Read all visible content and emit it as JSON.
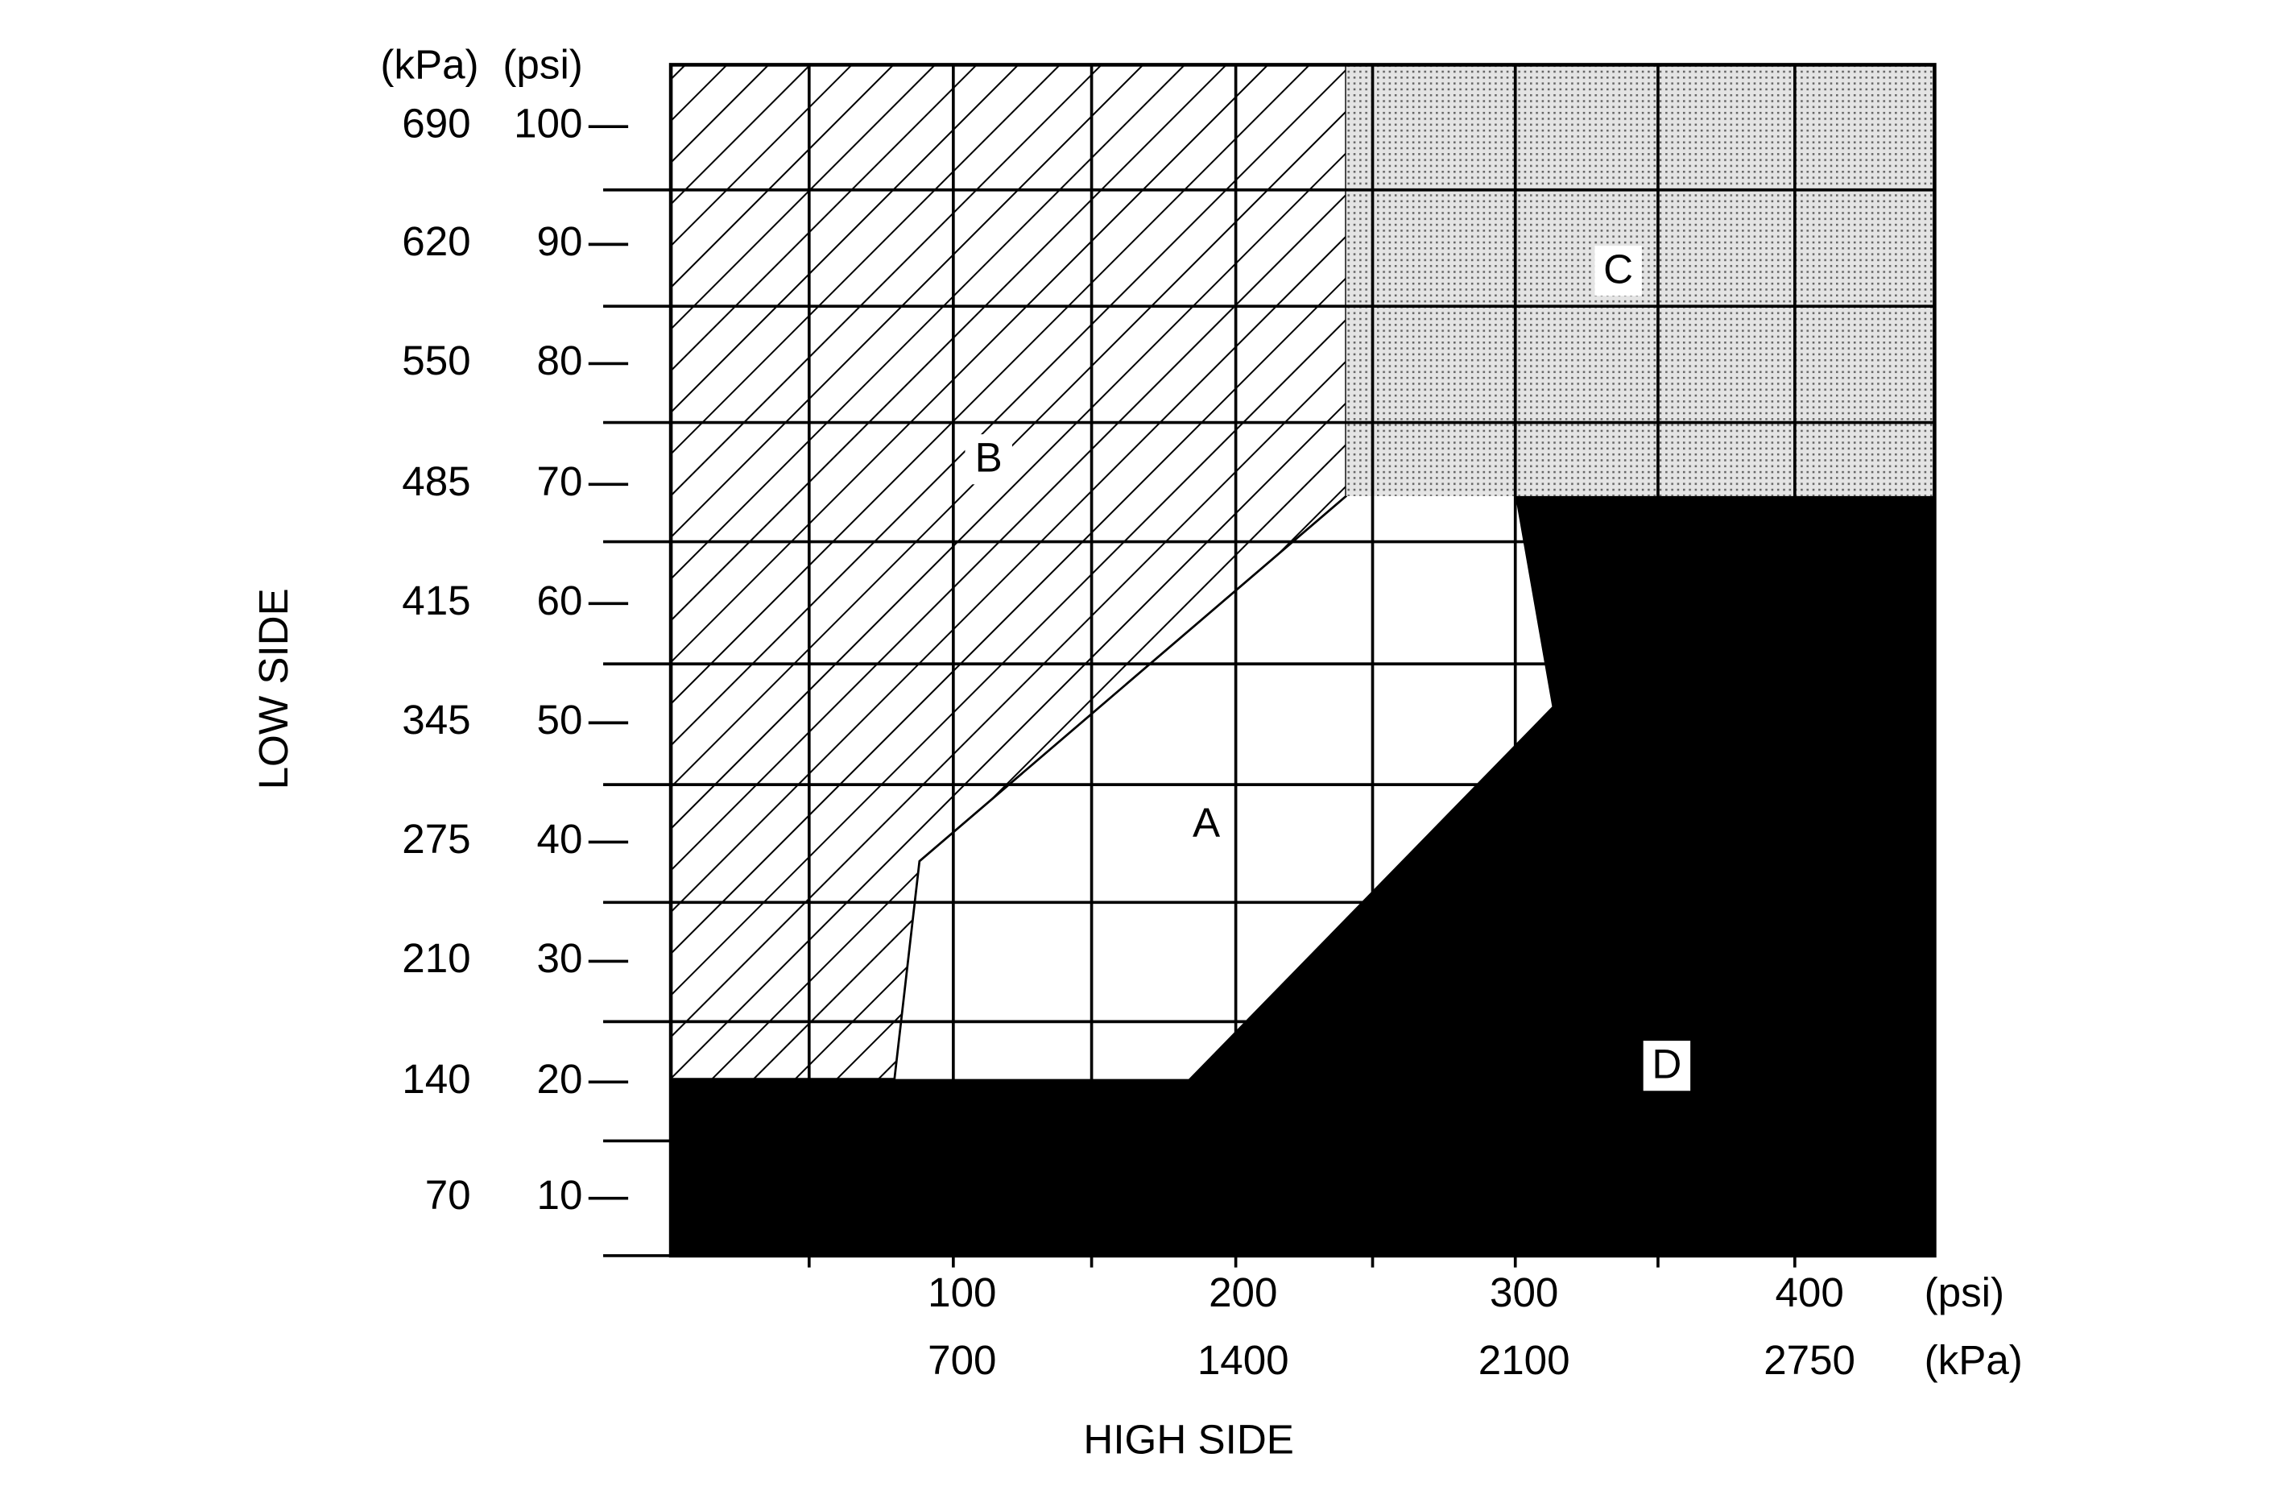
{
  "axes": {
    "y_label": "LOW SIDE",
    "x_label": "HIGH SIDE",
    "y_units": [
      "(kPa)",
      "(psi)"
    ],
    "x_units": [
      "(psi)",
      "(kPa)"
    ],
    "y_ticks_kpa": [
      "690",
      "620",
      "550",
      "485",
      "415",
      "345",
      "275",
      "210",
      "140",
      "70"
    ],
    "y_ticks_psi": [
      "100",
      "90",
      "80",
      "70",
      "60",
      "50",
      "40",
      "30",
      "20",
      "10"
    ],
    "x_ticks_psi": [
      "100",
      "200",
      "300",
      "400"
    ],
    "x_ticks_kpa": [
      "700",
      "1400",
      "2100",
      "2750"
    ]
  },
  "regions": [
    "A",
    "B",
    "C",
    "D"
  ]
}
